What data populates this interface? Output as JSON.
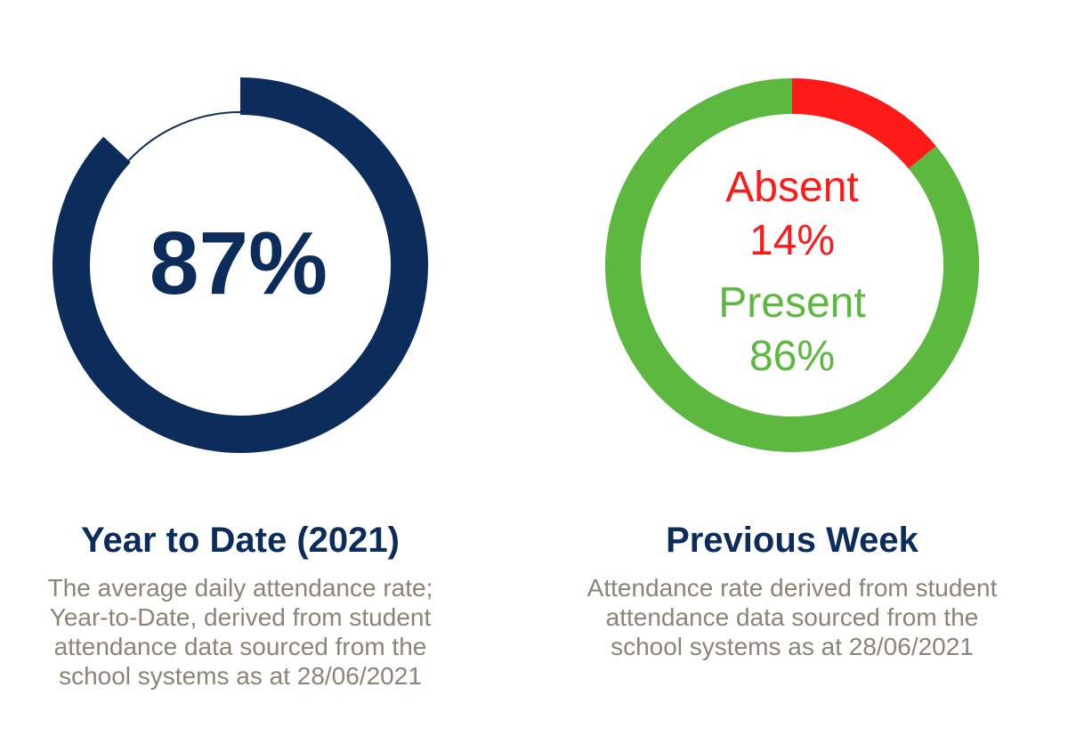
{
  "chart_data": [
    {
      "type": "pie",
      "variant": "radial-gauge",
      "title": "Year to Date (2021)",
      "description": [
        "The average daily attendance rate;",
        "Year-to-Date, derived from student",
        "attendance data sourced from the",
        "school systems as at 28/06/2021"
      ],
      "value": 87,
      "center_label": "87%",
      "colors": {
        "value": "#0c2d5c"
      }
    },
    {
      "type": "pie",
      "variant": "donut",
      "title": "Previous Week",
      "description": [
        "Attendance rate derived from student",
        "attendance data sourced from the",
        "school systems as at 28/06/2021"
      ],
      "slices": [
        {
          "label": "Absent",
          "value": 14,
          "value_label": "14%",
          "color": "#ff1a1a"
        },
        {
          "label": "Present",
          "value": 86,
          "value_label": "86%",
          "color": "#5db83f"
        }
      ]
    }
  ]
}
